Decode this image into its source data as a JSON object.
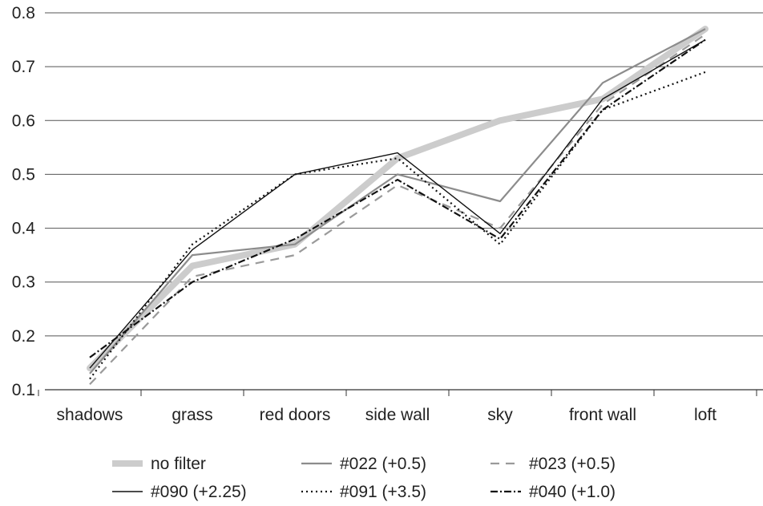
{
  "chart_data": {
    "type": "line",
    "title": "",
    "xlabel": "",
    "ylabel": "",
    "categories": [
      "shadows",
      "grass",
      "red doors",
      "side wall",
      "sky",
      "front wall",
      "loft"
    ],
    "ylim": [
      0.1,
      0.8
    ],
    "yticks": [
      "0.1",
      "0.2",
      "0.3",
      "0.4",
      "0.5",
      "0.6",
      "0.7",
      "0.8"
    ],
    "grid": "horizontal",
    "legend_position": "bottom",
    "series": [
      {
        "name": "no filter",
        "color": "#cccccc",
        "style": "thick",
        "values": [
          0.14,
          0.33,
          0.37,
          0.53,
          0.6,
          0.64,
          0.77
        ]
      },
      {
        "name": "#022 (+0.5)",
        "color": "#8c8c8c",
        "style": "solid",
        "values": [
          0.13,
          0.35,
          0.37,
          0.5,
          0.45,
          0.67,
          0.77
        ]
      },
      {
        "name": "#023 (+0.5)",
        "color": "#9a9a9a",
        "style": "dashed",
        "values": [
          0.11,
          0.31,
          0.35,
          0.48,
          0.4,
          0.63,
          0.76
        ]
      },
      {
        "name": "#090 (+2.25)",
        "color": "#111111",
        "style": "thin",
        "values": [
          0.14,
          0.36,
          0.5,
          0.54,
          0.39,
          0.64,
          0.75
        ]
      },
      {
        "name": "#091 (+3.5)",
        "color": "#111111",
        "style": "dotted",
        "values": [
          0.12,
          0.37,
          0.5,
          0.53,
          0.37,
          0.62,
          0.69
        ]
      },
      {
        "name": "#040 (+1.0)",
        "color": "#111111",
        "style": "dashdot",
        "values": [
          0.16,
          0.3,
          0.38,
          0.49,
          0.38,
          0.62,
          0.75
        ]
      }
    ]
  }
}
